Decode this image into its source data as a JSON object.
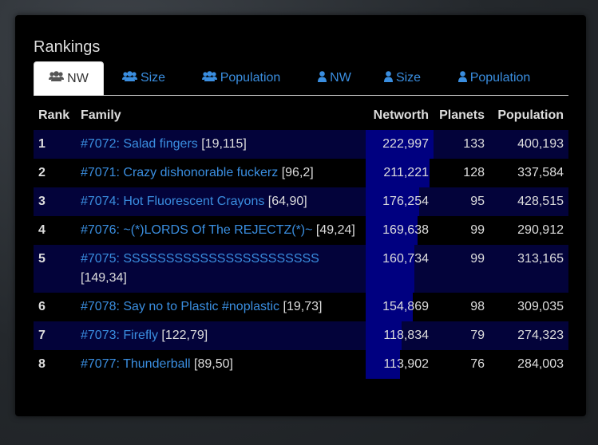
{
  "panel": {
    "title": "Rankings"
  },
  "tabs": [
    {
      "label": "NW",
      "icon": "users-icon",
      "active": true
    },
    {
      "label": "Size",
      "icon": "users-icon",
      "active": false
    },
    {
      "label": "Population",
      "icon": "users-icon",
      "active": false
    },
    {
      "label": "NW",
      "icon": "user-icon",
      "active": false
    },
    {
      "label": "Size",
      "icon": "user-icon",
      "active": false
    },
    {
      "label": "Population",
      "icon": "user-icon",
      "active": false
    }
  ],
  "table": {
    "headers": {
      "rank": "Rank",
      "family": "Family",
      "networth": "Networth",
      "planets": "Planets",
      "population": "Population"
    },
    "rows": [
      {
        "rank": "1",
        "link": "#7072: Salad fingers",
        "coords": "[19,115]",
        "networth": "222,997",
        "planets": "133",
        "population": "400,193",
        "nw_fraction": 1.0
      },
      {
        "rank": "2",
        "link": "#7071: Crazy dishonorable fuckerz",
        "coords": "[96,2]",
        "networth": "211,221",
        "planets": "128",
        "population": "337,584",
        "nw_fraction": 0.947
      },
      {
        "rank": "3",
        "link": "#7074: Hot Fluorescent Crayons",
        "coords": "[64,90]",
        "networth": "176,254",
        "planets": "95",
        "population": "428,515",
        "nw_fraction": 0.79
      },
      {
        "rank": "4",
        "link": "#7076: ~(*)LORDS Of The REJECTZ(*)~",
        "coords": "[49,24]",
        "networth": "169,638",
        "planets": "99",
        "population": "290,912",
        "nw_fraction": 0.761
      },
      {
        "rank": "5",
        "link": "#7075: SSSSSSSSSSSSSSSSSSSSSSS",
        "coords": "[149,34]",
        "networth": "160,734",
        "planets": "99",
        "population": "313,165",
        "nw_fraction": 0.721
      },
      {
        "rank": "6",
        "link": "#7078: Say no to Plastic #noplastic",
        "coords": "[19,73]",
        "networth": "154,869",
        "planets": "98",
        "population": "309,035",
        "nw_fraction": 0.694
      },
      {
        "rank": "7",
        "link": "#7073: Firefly",
        "coords": "[122,79]",
        "networth": "118,834",
        "planets": "79",
        "population": "274,323",
        "nw_fraction": 0.533
      },
      {
        "rank": "8",
        "link": "#7077: Thunderball",
        "coords": "[89,50]",
        "networth": "113,902",
        "planets": "76",
        "population": "284,003",
        "nw_fraction": 0.511
      }
    ]
  },
  "colors": {
    "link": "#3a8ee0",
    "bar": "#000080",
    "row_stripe": "#03033a"
  }
}
